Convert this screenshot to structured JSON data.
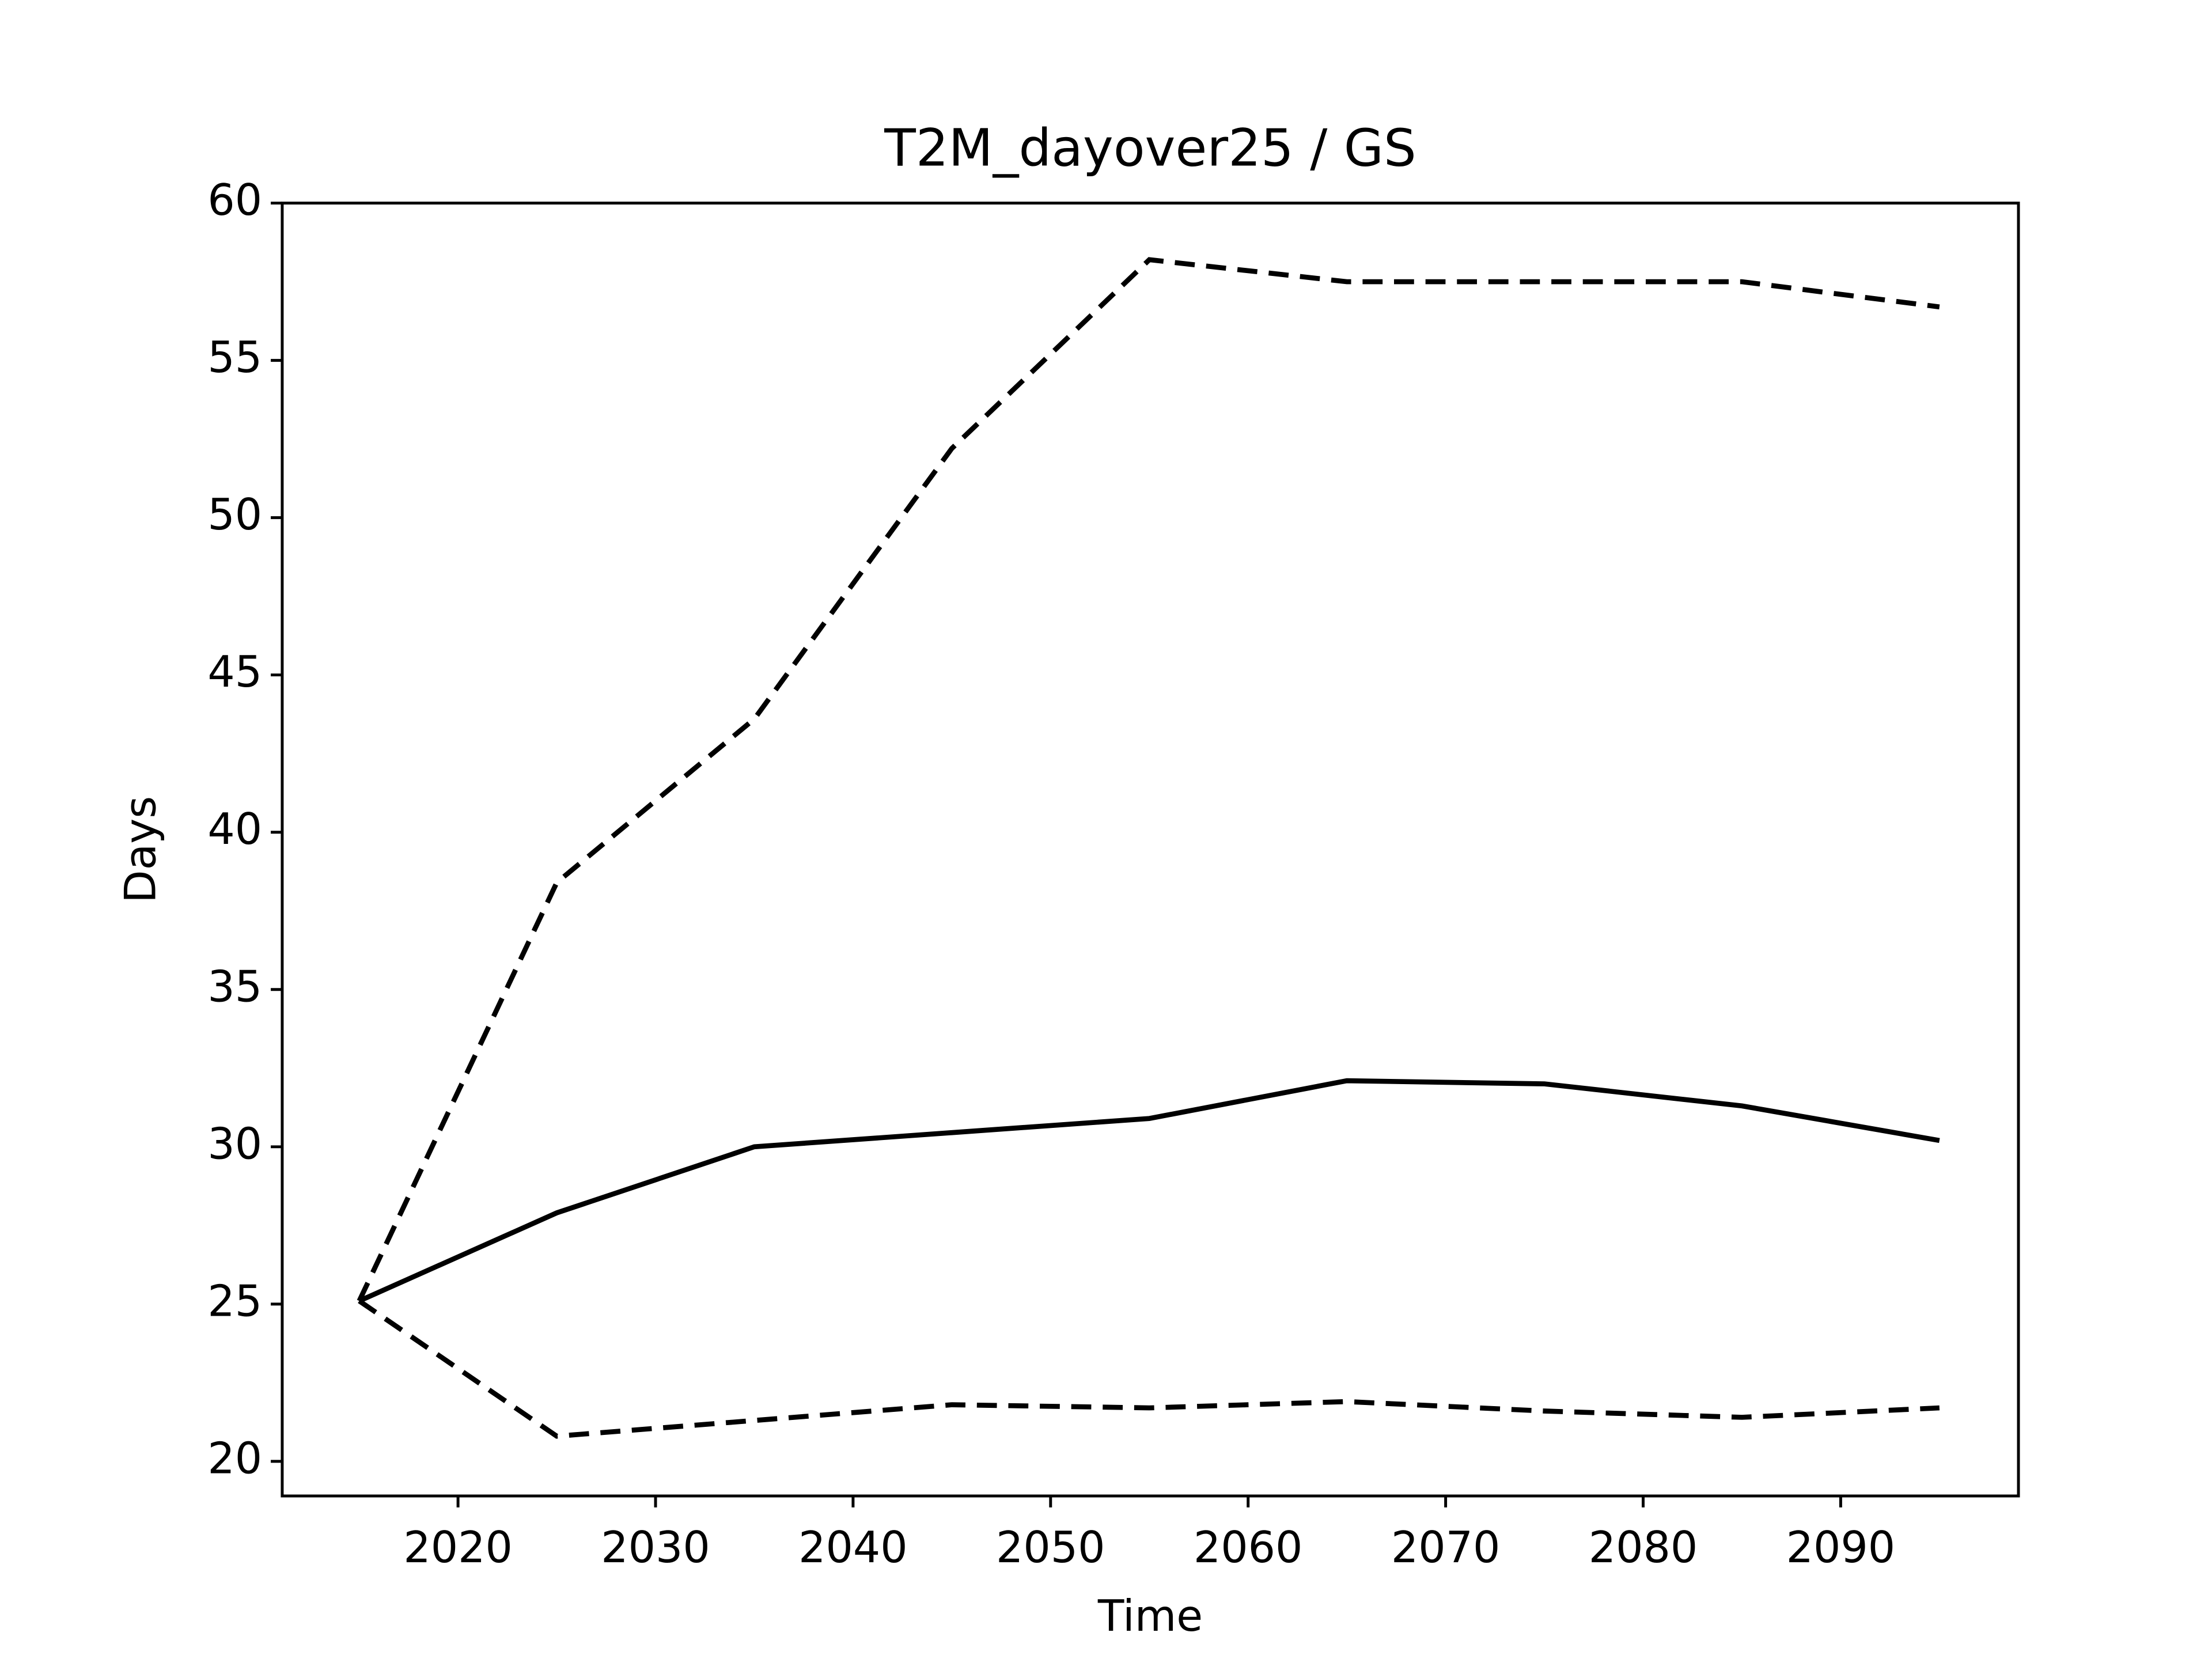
{
  "chart_data": {
    "type": "line",
    "title": "T2M_dayover25 / GS",
    "xlabel": "Time",
    "ylabel": "Days",
    "x": [
      2015,
      2025,
      2035,
      2045,
      2055,
      2065,
      2075,
      2085,
      2095
    ],
    "series": [
      {
        "color": "#000000",
        "linestyle": "solid",
        "values": [
          25.1,
          27.9,
          30.0,
          30.45,
          30.9,
          32.1,
          32.0,
          31.3,
          30.2
        ]
      },
      {
        "color": "#000000",
        "linestyle": "dashed",
        "values": [
          25.1,
          38.4,
          43.6,
          52.2,
          58.2,
          57.5,
          57.5,
          57.5,
          56.7
        ]
      },
      {
        "color": "#000000",
        "linestyle": "dashed",
        "values": [
          25.1,
          20.8,
          21.3,
          21.8,
          21.7,
          21.9,
          21.6,
          21.4,
          21.7
        ]
      }
    ],
    "xlim": [
      2011.1,
      2099.0
    ],
    "ylim": [
      18.9,
      60
    ],
    "xticks": [
      2020,
      2030,
      2040,
      2050,
      2060,
      2070,
      2080,
      2090
    ],
    "yticks": [
      20,
      25,
      30,
      35,
      40,
      45,
      50,
      55,
      60
    ],
    "grid": false
  }
}
